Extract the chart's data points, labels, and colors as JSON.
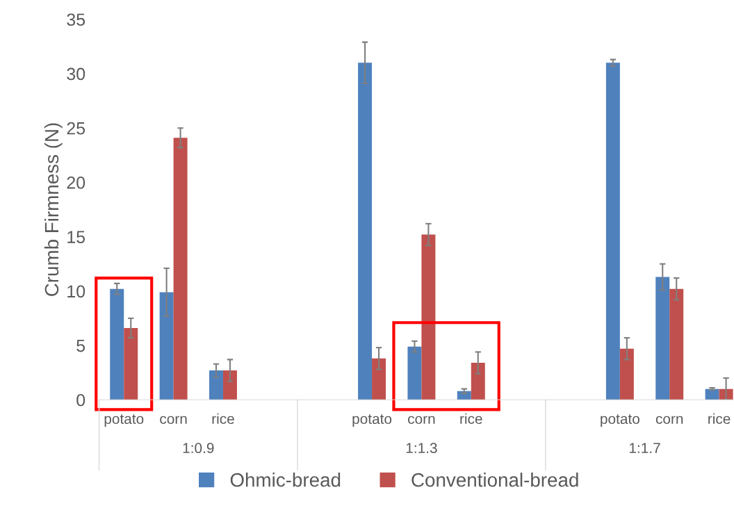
{
  "chart_data": {
    "type": "bar",
    "ylabel": "Crumb Firmness (N)",
    "categories": [
      "potato",
      "corn",
      "rice",
      null,
      null,
      "potato",
      "corn",
      "rice",
      null,
      null,
      "potato",
      "corn",
      "rice"
    ],
    "series": [
      {
        "name": "Ohmic-bread",
        "color": "#4f81bd",
        "values": [
          10.2,
          9.9,
          2.7,
          null,
          null,
          31.0,
          4.9,
          0.8,
          null,
          null,
          31.0,
          11.3,
          1.0
        ],
        "errors": [
          0.5,
          2.2,
          0.6,
          null,
          null,
          1.9,
          0.5,
          0.2,
          null,
          null,
          0.3,
          1.2,
          0.1
        ]
      },
      {
        "name": "Conventional-bread",
        "color": "#c0504d",
        "values": [
          6.6,
          24.1,
          2.7,
          null,
          null,
          3.8,
          15.2,
          3.4,
          null,
          null,
          4.7,
          10.2,
          1.0
        ],
        "errors": [
          0.9,
          0.9,
          1.0,
          null,
          null,
          1.0,
          1.0,
          1.0,
          null,
          null,
          1.0,
          1.0,
          1.0
        ]
      }
    ],
    "annotations": [
      "1:0.9",
      "1:1.3",
      "1:1.7"
    ],
    "ylim": [
      0,
      35
    ],
    "yticks": [
      0,
      5,
      10,
      15,
      20,
      25,
      30,
      35
    ],
    "grid": false,
    "legend": "bottom"
  }
}
